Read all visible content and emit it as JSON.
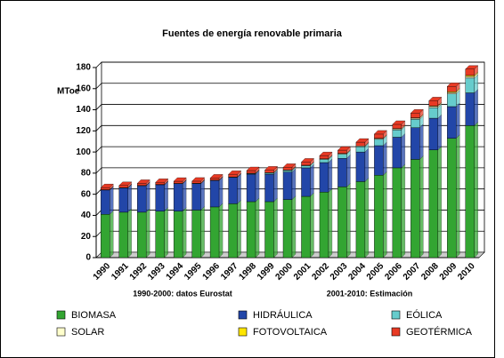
{
  "chart_data": {
    "type": "stacked_bar",
    "title": "Fuentes de energía renovable primaria",
    "y_label": "MToe",
    "notes": [
      "1990-2000: datos Eurostat",
      "2001-2010: Estimación"
    ],
    "categories": [
      "1990",
      "1991",
      "1992",
      "1993",
      "1994",
      "1995",
      "1996",
      "1997",
      "1998",
      "1999",
      "2000",
      "2001",
      "2002",
      "2003",
      "2004",
      "2005",
      "2006",
      "2007",
      "2008",
      "2009",
      "2010"
    ],
    "series": [
      {
        "name": "BIOMASA",
        "color": "#33a532",
        "values": [
          41,
          43,
          43,
          44,
          44,
          45,
          48,
          51,
          53,
          53,
          55,
          58,
          62,
          67,
          72,
          78,
          85,
          93,
          102,
          113,
          125
        ]
      },
      {
        "name": "HIDRÁULICA",
        "color": "#2246a8",
        "values": [
          23,
          23,
          25,
          25,
          26,
          25,
          25,
          25,
          26,
          26,
          26,
          27,
          28,
          27,
          28,
          28,
          29,
          30,
          30,
          30,
          31
        ]
      },
      {
        "name": "EÓLICA",
        "color": "#66cccc",
        "values": [
          0,
          0,
          0,
          0,
          0,
          0,
          0,
          0,
          0.5,
          1,
          1.5,
          2,
          3,
          4,
          5,
          6,
          7,
          8,
          10,
          12,
          14
        ]
      },
      {
        "name": "SOLAR",
        "color": "#ffffcc",
        "values": [
          0.3,
          0.3,
          0.3,
          0.3,
          0.3,
          0.4,
          0.4,
          0.4,
          0.4,
          0.5,
          0.5,
          0.5,
          0.6,
          0.6,
          0.7,
          0.8,
          0.9,
          1,
          1.1,
          1.3,
          1.5
        ]
      },
      {
        "name": "FOTOVOLTAICA",
        "color": "#ffe600",
        "values": [
          0,
          0,
          0,
          0,
          0,
          0,
          0,
          0,
          0,
          0,
          0,
          0,
          0,
          0.1,
          0.1,
          0.2,
          0.3,
          0.4,
          0.5,
          0.8,
          1
        ]
      },
      {
        "name": "GEOTÉRMICA",
        "color": "#e83a24",
        "values": [
          2,
          2,
          2,
          2,
          2,
          2,
          2,
          2.5,
          2.5,
          2.5,
          2.5,
          3,
          3,
          3,
          3.5,
          4,
          4,
          4.5,
          5,
          5,
          6
        ]
      }
    ],
    "ylim": [
      0,
      180
    ],
    "yticks": [
      0,
      20,
      40,
      60,
      80,
      100,
      120,
      140,
      160,
      180
    ],
    "grid": true
  }
}
